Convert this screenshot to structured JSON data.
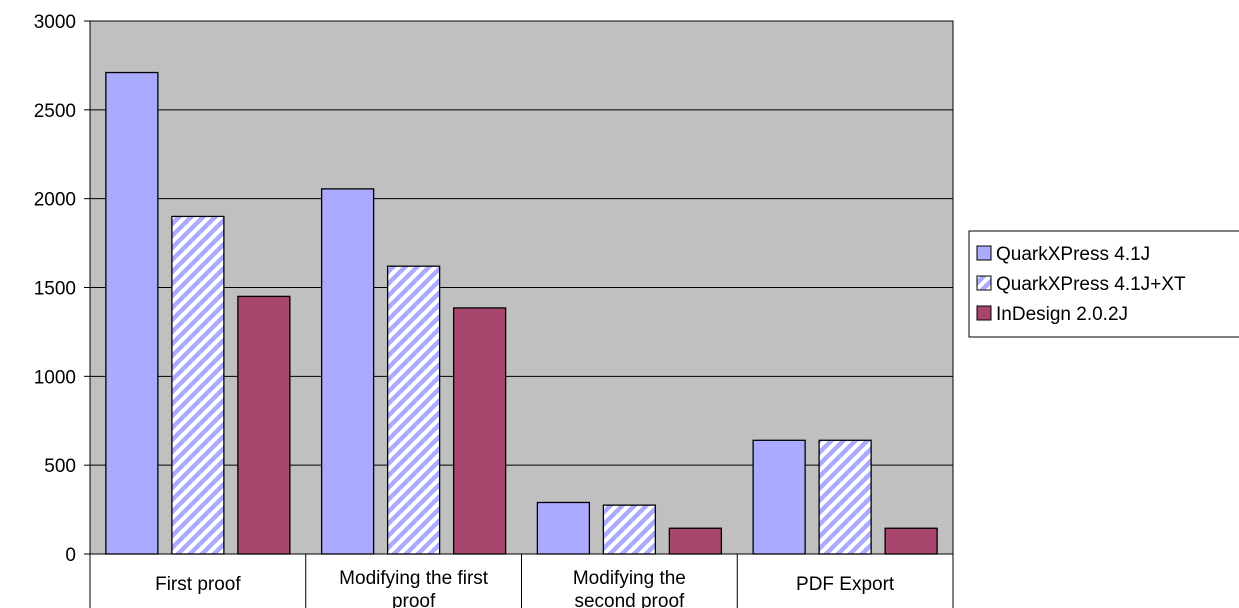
{
  "chart_data": {
    "type": "bar",
    "title": "",
    "xlabel": "",
    "ylabel": "",
    "ylim": [
      0,
      3000
    ],
    "yticks": [
      0,
      500,
      1000,
      1500,
      2000,
      2500,
      3000
    ],
    "grid": true,
    "legend_position": "right",
    "categories": [
      [
        "First proof"
      ],
      [
        "Modifying the first",
        "proof"
      ],
      [
        "Modifying the",
        "second proof"
      ],
      [
        "PDF Export"
      ]
    ],
    "series": [
      {
        "name": "QuarkXPress 4.1J",
        "values": [
          2710,
          2055,
          290,
          640
        ],
        "color": "#aaaaff",
        "pattern": "solid"
      },
      {
        "name": "QuarkXPress 4.1J+XT",
        "values": [
          1900,
          1620,
          275,
          640
        ],
        "color": "#aaaaff",
        "pattern": "diagonal-stripes"
      },
      {
        "name": "InDesign 2.0.2J",
        "values": [
          1450,
          1385,
          145,
          145
        ],
        "color": "#a8466e",
        "pattern": "solid"
      }
    ]
  }
}
